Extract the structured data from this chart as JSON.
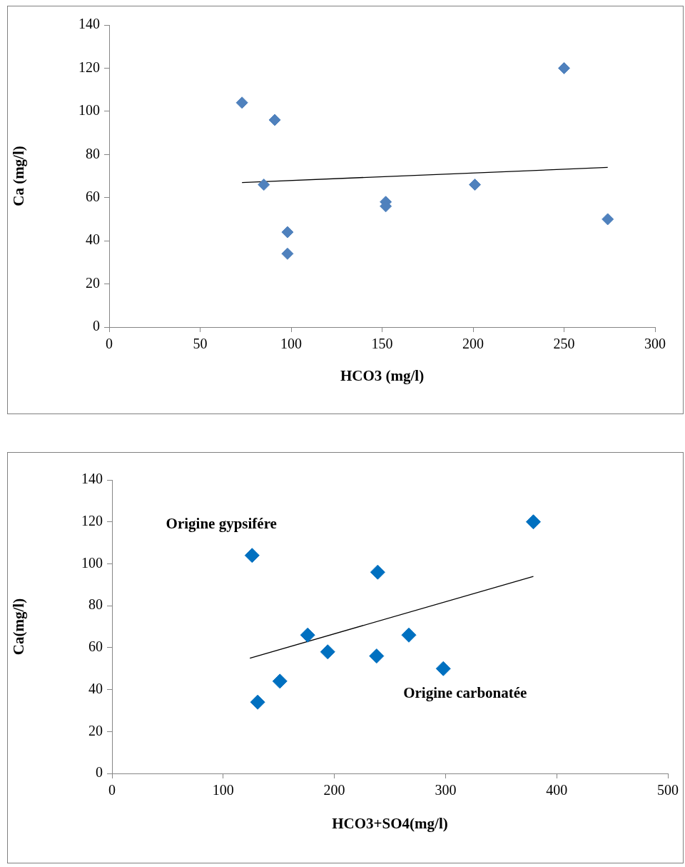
{
  "chart_data": [
    {
      "type": "scatter",
      "xlabel": "HCO3 (mg/l)",
      "ylabel": "Ca (mg/l)",
      "xlim": [
        0,
        300
      ],
      "xticks": [
        0,
        50,
        100,
        150,
        200,
        250,
        300
      ],
      "ylim": [
        0,
        140
      ],
      "yticks": [
        0,
        20,
        40,
        60,
        80,
        100,
        120,
        140
      ],
      "grid": false,
      "legend": false,
      "series": [
        {
          "color": "#4f81bd",
          "marker": "diamond",
          "x": [
            73,
            91,
            85,
            98,
            98,
            152,
            152,
            201,
            250,
            274
          ],
          "values": [
            104,
            96,
            66,
            44,
            34,
            58,
            56,
            66,
            120,
            50
          ]
        },
        {
          "type": "line",
          "color": "#000000",
          "marker": "none",
          "x": [
            73,
            274
          ],
          "values": [
            67,
            74
          ]
        }
      ]
    },
    {
      "type": "scatter",
      "xlabel": "HCO3+SO4(mg/l)",
      "ylabel": "Ca(mg/l)",
      "xlim": [
        0,
        500
      ],
      "xticks": [
        0,
        100,
        200,
        300,
        400,
        500
      ],
      "ylim": [
        0,
        140
      ],
      "yticks": [
        0,
        20,
        40,
        60,
        80,
        100,
        120,
        140
      ],
      "grid": false,
      "legend": false,
      "annotations": [
        "Origine gypsifére",
        "Origine carbonatée"
      ],
      "series": [
        {
          "color": "#0070c0",
          "marker": "diamond",
          "x": [
            126,
            131,
            151,
            176,
            194,
            238,
            239,
            267,
            298,
            379
          ],
          "values": [
            104,
            34,
            44,
            66,
            58,
            56,
            96,
            66,
            50,
            120
          ]
        },
        {
          "type": "line",
          "color": "#000000",
          "marker": "none",
          "x": [
            124,
            379
          ],
          "values": [
            55,
            94
          ]
        }
      ]
    }
  ]
}
